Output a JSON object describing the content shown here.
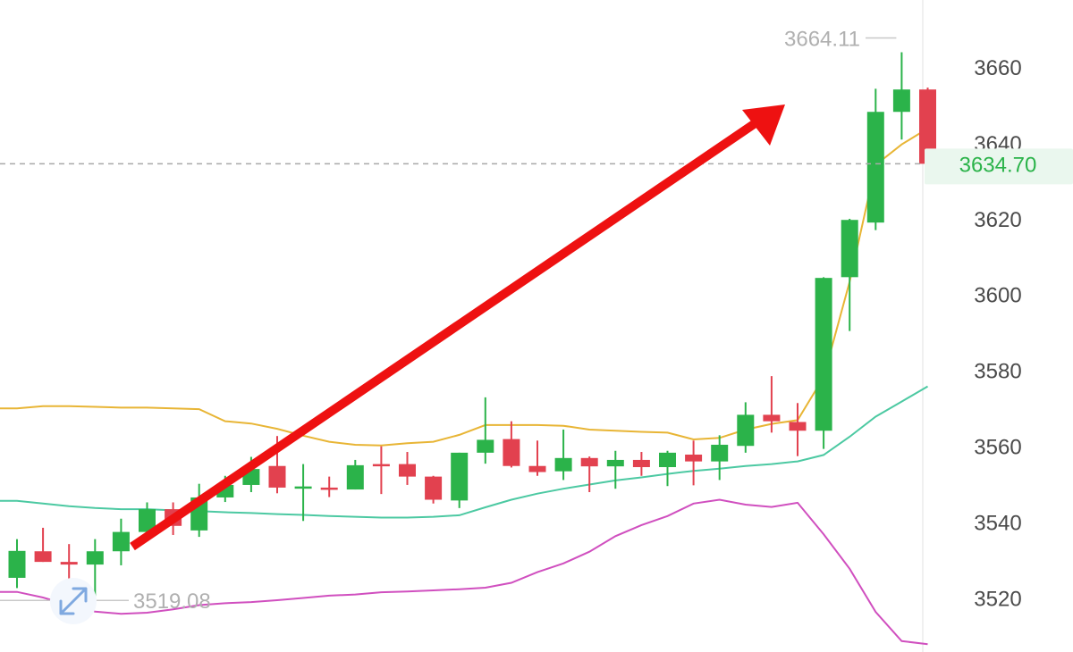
{
  "chart_data": {
    "type": "candlestick",
    "y_axis": {
      "ticks": [
        "3660",
        "3640",
        "3620",
        "3600",
        "3580",
        "3560",
        "3540",
        "3520"
      ],
      "tick_values": [
        3660,
        3640,
        3620,
        3600,
        3580,
        3560,
        3540,
        3520
      ],
      "range": [
        3507.5,
        3675.3
      ],
      "position": "right"
    },
    "current_price": {
      "label": "3634.70",
      "value": 3634.7
    },
    "high_marker": {
      "label": "3664.11",
      "value": 3664.11
    },
    "low_marker": {
      "label": "3519.08",
      "value": 3519.08
    },
    "colors": {
      "up": "#2bb34a",
      "down": "#e2414f",
      "ma_line": "#e8b535",
      "band_middle": "#4cc9a2",
      "band_lower": "#d04fbf",
      "trend_arrow": "#ee1111",
      "current_price_line": "#a9a9a9",
      "price_tag_bg": "#eaf7ee"
    },
    "candles": [
      {
        "open": 3525.5,
        "close": 3532.6,
        "high": 3535.7,
        "low": 3522.8
      },
      {
        "open": 3532.5,
        "close": 3529.7,
        "high": 3538.7,
        "low": 3529.7
      },
      {
        "open": 3529.7,
        "close": 3529.0,
        "high": 3534.4,
        "low": 3522.3
      },
      {
        "open": 3529.0,
        "close": 3532.5,
        "high": 3535.7,
        "low": 3519.1
      },
      {
        "open": 3532.5,
        "close": 3537.6,
        "high": 3541.1,
        "low": 3528.8
      },
      {
        "open": 3537.6,
        "close": 3543.6,
        "high": 3545.4,
        "low": 3536.8
      },
      {
        "open": 3543.6,
        "close": 3539.2,
        "high": 3545.4,
        "low": 3536.8
      },
      {
        "open": 3538.0,
        "close": 3546.7,
        "high": 3550.3,
        "low": 3536.3
      },
      {
        "open": 3546.7,
        "close": 3550.0,
        "high": 3552.4,
        "low": 3545.5
      },
      {
        "open": 3550.0,
        "close": 3554.2,
        "high": 3557.4,
        "low": 3548.1
      },
      {
        "open": 3555.0,
        "close": 3549.3,
        "high": 3562.9,
        "low": 3547.8
      },
      {
        "open": 3549.3,
        "close": 3549.6,
        "high": 3555.5,
        "low": 3540.5
      },
      {
        "open": 3549.3,
        "close": 3548.8,
        "high": 3552.2,
        "low": 3546.8
      },
      {
        "open": 3548.8,
        "close": 3555.2,
        "high": 3556.6,
        "low": 3548.8
      },
      {
        "open": 3555.5,
        "close": 3555.3,
        "high": 3560.2,
        "low": 3547.6
      },
      {
        "open": 3555.5,
        "close": 3552.2,
        "high": 3558.7,
        "low": 3550.0
      },
      {
        "open": 3552.2,
        "close": 3546.1,
        "high": 3552.4,
        "low": 3545.1
      },
      {
        "open": 3545.9,
        "close": 3558.5,
        "high": 3558.5,
        "low": 3543.9
      },
      {
        "open": 3558.5,
        "close": 3561.9,
        "high": 3573.1,
        "low": 3555.6
      },
      {
        "open": 3562.1,
        "close": 3555.0,
        "high": 3566.8,
        "low": 3554.6
      },
      {
        "open": 3555.0,
        "close": 3553.4,
        "high": 3561.7,
        "low": 3552.4
      },
      {
        "open": 3553.6,
        "close": 3557.1,
        "high": 3564.6,
        "low": 3551.3
      },
      {
        "open": 3557.1,
        "close": 3554.9,
        "high": 3557.5,
        "low": 3548.1
      },
      {
        "open": 3554.9,
        "close": 3556.6,
        "high": 3559.0,
        "low": 3549.0
      },
      {
        "open": 3556.6,
        "close": 3554.7,
        "high": 3558.7,
        "low": 3552.4
      },
      {
        "open": 3554.7,
        "close": 3558.5,
        "high": 3559.0,
        "low": 3549.7
      },
      {
        "open": 3558.0,
        "close": 3556.2,
        "high": 3561.7,
        "low": 3549.9
      },
      {
        "open": 3556.2,
        "close": 3560.6,
        "high": 3563.1,
        "low": 3551.3
      },
      {
        "open": 3560.3,
        "close": 3568.5,
        "high": 3571.8,
        "low": 3558.5
      },
      {
        "open": 3568.5,
        "close": 3566.8,
        "high": 3578.7,
        "low": 3563.8
      },
      {
        "open": 3566.6,
        "close": 3564.3,
        "high": 3571.6,
        "low": 3557.6
      },
      {
        "open": 3564.3,
        "close": 3604.6,
        "high": 3604.8,
        "low": 3559.5
      },
      {
        "open": 3604.8,
        "close": 3619.9,
        "high": 3620.2,
        "low": 3590.6
      },
      {
        "open": 3619.2,
        "close": 3648.4,
        "high": 3654.5,
        "low": 3617.2
      },
      {
        "open": 3648.4,
        "close": 3654.3,
        "high": 3664.11,
        "low": 3641.1
      },
      {
        "open": 3654.3,
        "close": 3634.7,
        "high": 3654.8,
        "low": 3633.7
      }
    ],
    "ma_line": [
      3570.2,
      3570.8,
      3570.8,
      3570.6,
      3570.4,
      3570.4,
      3570.2,
      3570.0,
      3566.8,
      3566.2,
      3564.8,
      3563.0,
      3561.4,
      3560.6,
      3560.4,
      3561.0,
      3561.4,
      3563.2,
      3565.8,
      3565.8,
      3565.8,
      3565.6,
      3564.6,
      3564.3,
      3564.0,
      3563.8,
      3562.0,
      3562.4,
      3564.6,
      3566.1,
      3567.1,
      3578.4,
      3603.6,
      3634.4,
      3639.8,
      3644.0
    ],
    "band_middle": [
      3545.8,
      3545.1,
      3544.4,
      3543.9,
      3543.6,
      3543.6,
      3543.3,
      3543.1,
      3542.8,
      3542.6,
      3542.3,
      3542.1,
      3541.8,
      3541.6,
      3541.4,
      3541.4,
      3541.6,
      3542.0,
      3544.1,
      3546.1,
      3547.7,
      3549.0,
      3550.1,
      3551.2,
      3552.0,
      3552.9,
      3553.7,
      3554.3,
      3555.0,
      3555.5,
      3556.2,
      3557.9,
      3562.7,
      3568.0,
      3572.0,
      3576.0
    ],
    "band_lower": [
      3521.8,
      3520.3,
      3518.3,
      3516.6,
      3516.0,
      3516.3,
      3517.2,
      3518.3,
      3518.8,
      3519.1,
      3519.6,
      3520.2,
      3520.8,
      3521.1,
      3521.7,
      3521.9,
      3522.2,
      3522.5,
      3522.9,
      3524.2,
      3527.0,
      3529.3,
      3532.4,
      3536.5,
      3539.4,
      3541.8,
      3545.1,
      3546.1,
      3544.8,
      3544.2,
      3545.3,
      3537.0,
      3527.9,
      3516.5,
      3508.8,
      3508.0
    ]
  }
}
